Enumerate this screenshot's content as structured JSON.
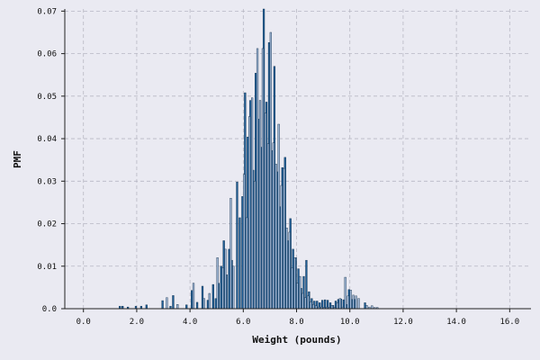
{
  "chart_data": {
    "type": "bar",
    "title": "",
    "xlabel": "Weight (pounds)",
    "ylabel": "PMF",
    "xlim": [
      -0.7,
      16.8
    ],
    "ylim": [
      0,
      0.0705
    ],
    "xticks": [
      0,
      2,
      4,
      6,
      8,
      10,
      12,
      14,
      16
    ],
    "xtick_labels": [
      "0.0",
      "2.0",
      "4.0",
      "6.0",
      "8.0",
      "10.0",
      "12.0",
      "14.0",
      "16.0"
    ],
    "yticks": [
      0,
      0.01,
      0.02,
      0.03,
      0.04,
      0.05,
      0.06,
      0.07
    ],
    "ytick_labels": [
      "0.0",
      "0.01",
      "0.02",
      "0.03",
      "0.04",
      "0.05",
      "0.06",
      "0.07"
    ],
    "grid": true,
    "legend": "none",
    "colors": {
      "series_1": "#1f5e96",
      "series_2": "#9db4d3",
      "edge": "#0d2b47",
      "background": "#eaeaf2",
      "grid": "#b8b8c4"
    },
    "bar_width": 0.0625,
    "series": [
      {
        "x": [
          1.4,
          1.5,
          1.7,
          2.0,
          2.2,
          2.4,
          3.0,
          3.3,
          3.4,
          3.9,
          4.1,
          4.3,
          4.5,
          4.7,
          4.9,
          5.0,
          5.1,
          5.2,
          5.3,
          5.4,
          5.5,
          5.6,
          5.8,
          5.9,
          6.0,
          6.1,
          6.2,
          6.3,
          6.4,
          6.5,
          6.6,
          6.7,
          6.8,
          6.9,
          7.0,
          7.1,
          7.2,
          7.3,
          7.4,
          7.5,
          7.6,
          7.7,
          7.8,
          7.9,
          8.0,
          8.1,
          8.2,
          8.3,
          8.4,
          8.5,
          8.6,
          8.7,
          8.8,
          8.9,
          9.0,
          9.1,
          9.2,
          9.3,
          9.4,
          9.5,
          9.6,
          9.7,
          9.8,
          9.9,
          10.0,
          10.1,
          10.2,
          10.6
        ],
        "y": [
          0.0006,
          0.0006,
          0.0004,
          0.0006,
          0.0006,
          0.0009,
          0.0019,
          0.0006,
          0.0031,
          0.0009,
          0.0043,
          0.0015,
          0.0053,
          0.002,
          0.0057,
          0.0024,
          0.006,
          0.01,
          0.016,
          0.008,
          0.014,
          0.0114,
          0.0298,
          0.0214,
          0.0264,
          0.0508,
          0.0404,
          0.049,
          0.0326,
          0.0554,
          0.0446,
          0.038,
          0.0705,
          0.0486,
          0.0626,
          0.0372,
          0.057,
          0.0322,
          0.024,
          0.0332,
          0.0356,
          0.016,
          0.0212,
          0.014,
          0.012,
          0.0094,
          0.0048,
          0.0076,
          0.0114,
          0.004,
          0.0024,
          0.0018,
          0.0018,
          0.0014,
          0.002,
          0.0021,
          0.002,
          0.0014,
          0.0008,
          0.0018,
          0.0022,
          0.0023,
          0.0021,
          0.001,
          0.0045,
          0.0022,
          0.0022,
          0.0014
        ]
      },
      {
        "x": [
          3.1,
          3.5,
          4.1,
          4.5,
          4.7,
          5.0,
          5.2,
          5.3,
          5.5,
          5.6,
          6.0,
          6.1,
          6.2,
          6.3,
          6.4,
          6.5,
          6.6,
          6.7,
          6.8,
          6.9,
          7.0,
          7.1,
          7.2,
          7.3,
          7.4,
          7.5,
          7.6,
          7.7,
          7.8,
          7.9,
          8.0,
          8.1,
          8.2,
          8.3,
          8.4,
          8.5,
          8.6,
          8.7,
          8.8,
          8.9,
          9.0,
          9.1,
          9.2,
          9.3,
          9.4,
          9.5,
          9.6,
          9.7,
          9.8,
          9.9,
          10.0,
          10.1,
          10.2,
          10.3,
          10.6,
          10.7,
          10.8,
          10.9,
          11.0
        ],
        "y": [
          0.0026,
          0.001,
          0.006,
          0.0024,
          0.0036,
          0.012,
          0.0096,
          0.014,
          0.026,
          0.01,
          0.0316,
          0.0214,
          0.0452,
          0.0496,
          0.03,
          0.0612,
          0.049,
          0.0612,
          0.046,
          0.0388,
          0.065,
          0.039,
          0.034,
          0.0434,
          0.029,
          0.033,
          0.019,
          0.018,
          0.0096,
          0.012,
          0.006,
          0.0076,
          0.0036,
          0.0026,
          0.003,
          0.0016,
          0.001,
          0.0007,
          0.0004,
          0.0004,
          0.0003,
          0.0004,
          0.0003,
          0.0008,
          0.0003,
          0.0014,
          0.0024,
          0.0004,
          0.0074,
          0.003,
          0.0044,
          0.0032,
          0.003,
          0.0024,
          0.0008,
          0.0004,
          0.0007,
          0.0003,
          0.0003
        ]
      }
    ]
  }
}
